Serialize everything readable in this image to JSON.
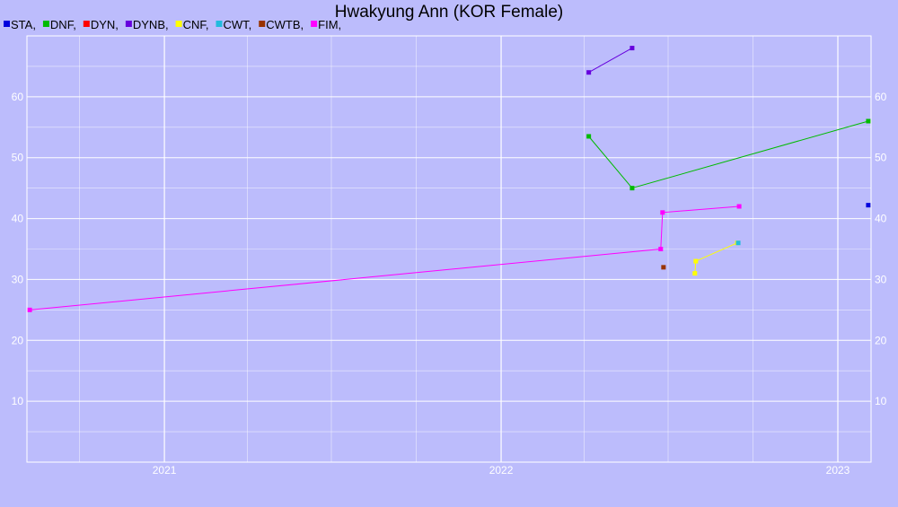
{
  "chart_data": {
    "type": "line",
    "title": "Hwakyung Ann (KOR Female)",
    "xlabel": "",
    "ylabel": "",
    "xlim": [
      "2020-08-05",
      "2023-02-06"
    ],
    "ylim": [
      0,
      70
    ],
    "x_ticks": [
      {
        "label": "2021",
        "date": "2021-01-01"
      },
      {
        "label": "2022",
        "date": "2022-01-01"
      },
      {
        "label": "2023",
        "date": "2023-01-01"
      }
    ],
    "y_ticks": [
      10,
      20,
      30,
      40,
      50,
      60
    ],
    "grid": true,
    "legend_position": "top-left",
    "colors": {
      "background": "#bcbcfc",
      "grid": "#ffffff",
      "text": "#000000"
    },
    "series": [
      {
        "name": "STA",
        "color": "#0000dd",
        "points": [
          {
            "x": "2023-02-03",
            "y": 42.2
          }
        ]
      },
      {
        "name": "DNF",
        "color": "#00bb00",
        "points": [
          {
            "x": "2022-04-06",
            "y": 53.5
          },
          {
            "x": "2022-05-23",
            "y": 45
          },
          {
            "x": "2023-02-03",
            "y": 56
          }
        ]
      },
      {
        "name": "DYN",
        "color": "#ff0000",
        "points": []
      },
      {
        "name": "DYNB",
        "color": "#6600dd",
        "points": [
          {
            "x": "2022-04-06",
            "y": 64
          },
          {
            "x": "2022-05-23",
            "y": 68
          }
        ]
      },
      {
        "name": "CNF",
        "color": "#ffff00",
        "points": [
          {
            "x": "2022-07-30",
            "y": 31
          },
          {
            "x": "2022-07-31",
            "y": 33
          },
          {
            "x": "2022-09-14",
            "y": 36
          }
        ]
      },
      {
        "name": "CWT",
        "color": "#22bbdd",
        "points": [
          {
            "x": "2022-09-15",
            "y": 36
          }
        ]
      },
      {
        "name": "CWTB",
        "color": "#993300",
        "points": [
          {
            "x": "2022-06-26",
            "y": 32
          }
        ]
      },
      {
        "name": "FIM",
        "color": "#ff00ff",
        "points": [
          {
            "x": "2020-08-08",
            "y": 25
          },
          {
            "x": "2022-06-23",
            "y": 35
          },
          {
            "x": "2022-06-25",
            "y": 41
          },
          {
            "x": "2022-09-16",
            "y": 42
          }
        ]
      }
    ]
  }
}
